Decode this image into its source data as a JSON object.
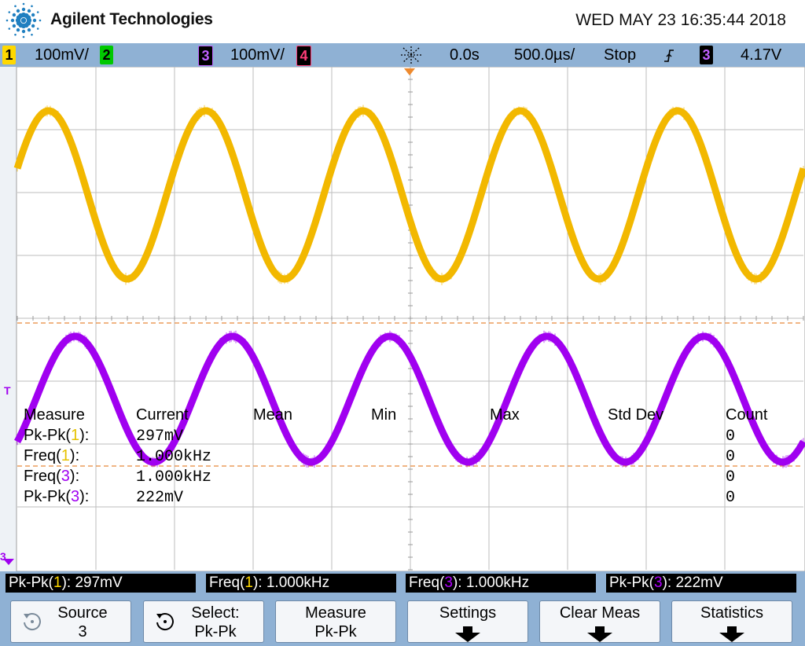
{
  "header": {
    "brand": "Agilent Technologies",
    "datetime": "WED MAY 23 16:35:44 2018"
  },
  "statusbar": {
    "ch1": {
      "label": "1",
      "scale": "100mV/",
      "color": "#ffd800"
    },
    "ch2": {
      "label": "2",
      "color": "#00c800"
    },
    "ch3": {
      "label": "3",
      "scale": "100mV/",
      "color": "#b000ff"
    },
    "ch4": {
      "label": "4",
      "color": "#ff2a6a"
    },
    "time_delay": "0.0s",
    "time_scale": "500.0us/",
    "run_state": "Stop",
    "trigger_slope_icon": "rising-edge-icon",
    "trigger_source": "3",
    "trigger_level": "4.17V"
  },
  "screen": {
    "trigger_marker": "T",
    "ch3_marker": "3",
    "measure_table": {
      "headers": [
        "Measure",
        "Current",
        "Mean",
        "Min",
        "Max",
        "Std Dev",
        "Count"
      ],
      "rows": [
        {
          "name_prefix": "Pk-Pk(",
          "ch": "1",
          "name_suffix": "):",
          "current": "297mV",
          "count": "0"
        },
        {
          "name_prefix": "Freq(",
          "ch": "1",
          "name_suffix": "):",
          "current": "1.000kHz",
          "count": "0"
        },
        {
          "name_prefix": "Freq(",
          "ch": "3",
          "name_suffix": "):",
          "current": "1.000kHz",
          "count": "0"
        },
        {
          "name_prefix": "Pk-Pk(",
          "ch": "3",
          "name_suffix": "):",
          "current": "222mV",
          "count": "0"
        }
      ]
    }
  },
  "measurements": [
    {
      "prefix": "Pk-Pk(",
      "ch": "1",
      "suffix": "): 297mV"
    },
    {
      "prefix": "Freq(",
      "ch": "1",
      "suffix": "): 1.000kHz"
    },
    {
      "prefix": "Freq(",
      "ch": "3",
      "suffix": "): 1.000kHz"
    },
    {
      "prefix": "Pk-Pk(",
      "ch": "3",
      "suffix": "): 222mV"
    }
  ],
  "softkeys": [
    {
      "line1": "Source",
      "line2": "3"
    },
    {
      "line1": "Select:",
      "line2": "Pk-Pk"
    },
    {
      "line1": "Measure",
      "line2": "Pk-Pk"
    },
    {
      "line1": "Settings",
      "line2": ""
    },
    {
      "line1": "Clear Meas",
      "line2": ""
    },
    {
      "line1": "Statistics",
      "line2": ""
    }
  ],
  "colors": {
    "ch1_trace": "#f2b800",
    "ch3_trace": "#a000f0",
    "grid": "#bdbdbd",
    "cursor": "#e8893a"
  }
}
